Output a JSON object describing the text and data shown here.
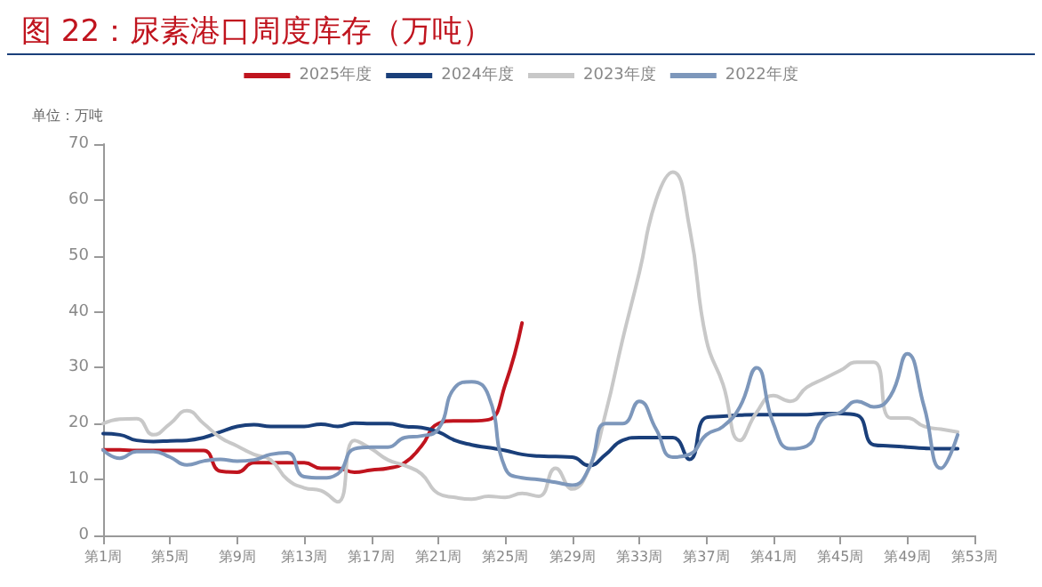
{
  "chart_data": {
    "type": "line",
    "title": "图 22：尿素港口周度库存（万吨）",
    "ylabel": "单位：万吨",
    "categories": [
      "第1周",
      null,
      null,
      null,
      "第5周",
      null,
      null,
      null,
      "第9周",
      null,
      null,
      null,
      "第13周",
      null,
      null,
      null,
      "第17周",
      null,
      null,
      null,
      "第21周",
      null,
      null,
      null,
      "第25周",
      null,
      null,
      null,
      "第29周",
      null,
      null,
      null,
      "第33周",
      null,
      null,
      null,
      "第37周",
      null,
      null,
      null,
      "第41周",
      null,
      null,
      null,
      "第45周",
      null,
      null,
      null,
      "第49周",
      null,
      null,
      null,
      "第53周"
    ],
    "series": [
      {
        "name": "2025年度",
        "color": "#c0141e",
        "values": [
          15.3,
          15.3,
          15.2,
          15.2,
          15.2,
          15.2,
          15.2,
          11.5,
          11.3,
          13,
          13,
          13,
          13,
          12,
          12,
          11.3,
          11.7,
          12,
          13,
          16,
          20,
          20.5,
          20.5,
          20.7,
          27,
          38,
          null,
          null,
          null,
          null,
          null,
          null,
          null,
          null,
          null,
          null,
          null,
          null,
          null,
          null,
          null,
          null,
          null,
          null,
          null,
          null,
          null,
          null,
          null,
          null,
          null,
          null,
          null
        ]
      },
      {
        "name": "2024年度",
        "color": "#1a3f7a",
        "values": [
          18.2,
          18,
          17,
          16.8,
          16.9,
          17,
          17.5,
          18.5,
          19.5,
          19.8,
          19.5,
          19.5,
          19.5,
          19.9,
          19.5,
          20.1,
          20,
          20,
          19.5,
          19.3,
          18.5,
          17,
          16.2,
          15.7,
          15.2,
          14.5,
          14.2,
          14.1,
          14,
          12.5,
          14.5,
          17,
          17.5,
          17.5,
          17.5,
          13.6,
          21.1,
          21.3,
          21.5,
          21.6,
          21.6,
          21.6,
          21.6,
          21.8,
          21.8,
          21.5,
          16.2,
          16,
          15.8,
          15.6,
          15.5,
          15.5,
          null
        ]
      },
      {
        "name": "2023年度",
        "color": "#c8c8c8",
        "values": [
          20,
          20.8,
          20.9,
          18,
          20,
          22.3,
          20,
          17.5,
          16,
          14.5,
          13.5,
          10,
          8.5,
          8,
          6,
          17,
          15.5,
          13.5,
          12.5,
          11,
          7.5,
          6.8,
          6.5,
          7,
          6.8,
          7.5,
          7,
          12,
          8.3,
          12,
          22,
          35,
          47,
          60,
          65,
          55,
          35,
          27,
          17,
          22,
          25,
          24,
          26.5,
          28,
          29.5,
          31,
          31,
          21,
          21,
          19.5,
          19,
          18.5,
          null
        ]
      },
      {
        "name": "2022年度",
        "color": "#7d97bb",
        "values": [
          15.3,
          13.8,
          15,
          15,
          14,
          12.6,
          13.3,
          13.6,
          13.3,
          13.5,
          14.5,
          14.8,
          10.5,
          10.3,
          11,
          15.5,
          15.8,
          15.8,
          17.5,
          17.8,
          19,
          26.5,
          27.5,
          25,
          12,
          10.3,
          10,
          9.5,
          9,
          12,
          20,
          20,
          24,
          19,
          14,
          14.5,
          18,
          19.5,
          23,
          30,
          20,
          15.5,
          16,
          21,
          22,
          24,
          23,
          25,
          32.5,
          23,
          12,
          18,
          null
        ]
      }
    ],
    "ylim": [
      0,
      70
    ],
    "yticks": [
      0,
      10,
      20,
      30,
      40,
      50,
      60,
      70
    ],
    "grid": false,
    "legend": "top",
    "marker": "none",
    "line_style": "solid"
  }
}
